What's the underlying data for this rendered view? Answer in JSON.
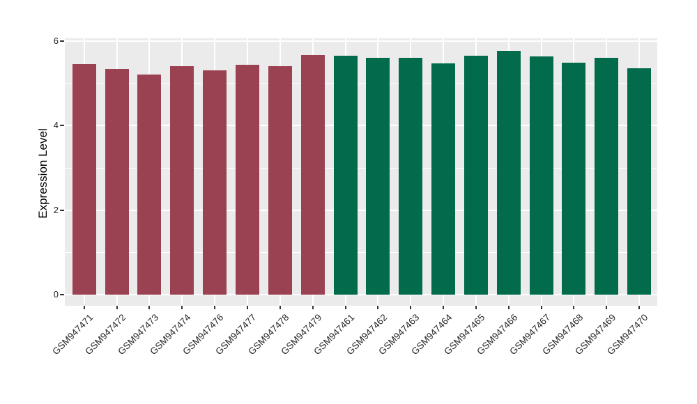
{
  "figure": {
    "background": "#FFFFFF",
    "panel_background": "#EBEBEB",
    "gridline_color": "#FFFFFF",
    "axis_tick_color": "#333333",
    "axis_text_color": "#262626",
    "axis_title_color": "#000000"
  },
  "chart_data": {
    "type": "bar",
    "title": "",
    "xlabel": "",
    "ylabel": "Expression Level",
    "ylim": [
      0,
      6
    ],
    "yticks": [
      0,
      2,
      4,
      6
    ],
    "yticks_minor": [
      1,
      3,
      5
    ],
    "grid": "white major+minor horizontal lines and major vertical lines on gray panel",
    "legend_position": "none",
    "group_colors": {
      "groupA": "#9B4252",
      "groupB": "#026B4B"
    },
    "categories": [
      "GSM947471",
      "GSM947472",
      "GSM947473",
      "GSM947474",
      "GSM947476",
      "GSM947477",
      "GSM947478",
      "GSM947479",
      "GSM947461",
      "GSM947462",
      "GSM947463",
      "GSM947464",
      "GSM947465",
      "GSM947466",
      "GSM947467",
      "GSM947468",
      "GSM947469",
      "GSM947470"
    ],
    "bars": [
      {
        "label": "GSM947471",
        "value": 5.45,
        "group": "groupA"
      },
      {
        "label": "GSM947472",
        "value": 5.34,
        "group": "groupA"
      },
      {
        "label": "GSM947473",
        "value": 5.21,
        "group": "groupA"
      },
      {
        "label": "GSM947474",
        "value": 5.4,
        "group": "groupA"
      },
      {
        "label": "GSM947476",
        "value": 5.31,
        "group": "groupA"
      },
      {
        "label": "GSM947477",
        "value": 5.44,
        "group": "groupA"
      },
      {
        "label": "GSM947478",
        "value": 5.41,
        "group": "groupA"
      },
      {
        "label": "GSM947479",
        "value": 5.67,
        "group": "groupA"
      },
      {
        "label": "GSM947461",
        "value": 5.65,
        "group": "groupB"
      },
      {
        "label": "GSM947462",
        "value": 5.61,
        "group": "groupB"
      },
      {
        "label": "GSM947463",
        "value": 5.6,
        "group": "groupB"
      },
      {
        "label": "GSM947464",
        "value": 5.48,
        "group": "groupB"
      },
      {
        "label": "GSM947465",
        "value": 5.65,
        "group": "groupB"
      },
      {
        "label": "GSM947466",
        "value": 5.77,
        "group": "groupB"
      },
      {
        "label": "GSM947467",
        "value": 5.64,
        "group": "groupB"
      },
      {
        "label": "GSM947468",
        "value": 5.49,
        "group": "groupB"
      },
      {
        "label": "GSM947469",
        "value": 5.61,
        "group": "groupB"
      },
      {
        "label": "GSM947470",
        "value": 5.36,
        "group": "groupB"
      }
    ]
  }
}
